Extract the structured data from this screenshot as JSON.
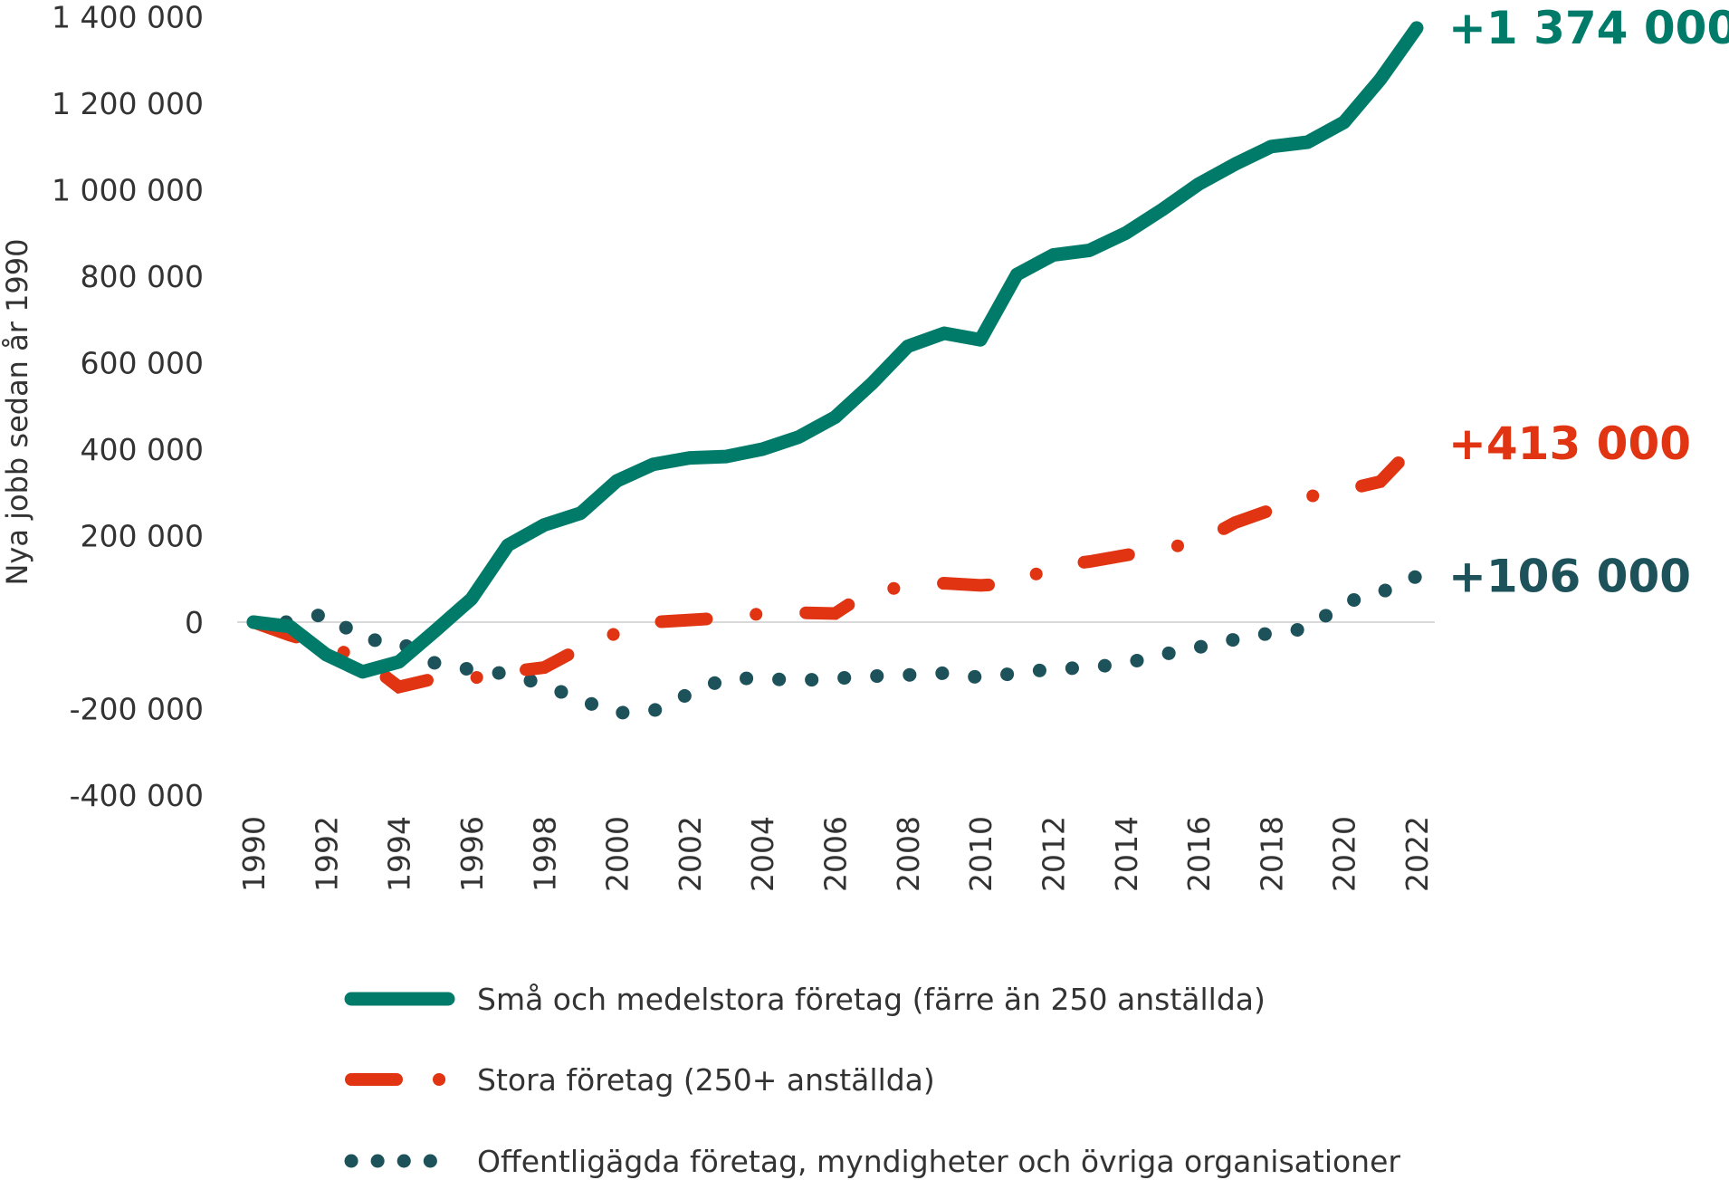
{
  "chart_data": {
    "type": "line",
    "title": "",
    "xlabel": "",
    "ylabel": "Nya jobb sedan år 1990",
    "ylim": [
      -400000,
      1400000
    ],
    "yticks": [
      -400000,
      -200000,
      0,
      200000,
      400000,
      600000,
      800000,
      1000000,
      1200000,
      1400000
    ],
    "ytick_labels": [
      "-400 000",
      "-200 000",
      "0",
      "200 000",
      "400 000",
      "600 000",
      "800 000",
      "1 000 000",
      "1 200 000",
      "1 400 000"
    ],
    "xtick_labels": [
      "1990",
      "1992",
      "1994",
      "1996",
      "1998",
      "2000",
      "2002",
      "2004",
      "2006",
      "2008",
      "2010",
      "2012",
      "2014",
      "2016",
      "2018",
      "2020",
      "2022"
    ],
    "x": [
      1990,
      1991,
      1992,
      1993,
      1994,
      1995,
      1996,
      1997,
      1998,
      1999,
      2000,
      2001,
      2002,
      2003,
      2004,
      2005,
      2006,
      2007,
      2008,
      2009,
      2010,
      2011,
      2012,
      2013,
      2014,
      2015,
      2016,
      2017,
      2018,
      2019,
      2020,
      2021,
      2022
    ],
    "legend_position": "bottom",
    "series": [
      {
        "name": "Små och medelstora företag (färre än 250 anställda)",
        "color": "#007b69",
        "style": "solid",
        "end_label": "+1 374 000",
        "values": [
          0,
          -10000,
          -75000,
          -115000,
          -92000,
          -20000,
          54000,
          178000,
          225000,
          252000,
          327000,
          365000,
          380000,
          383000,
          400000,
          428000,
          474000,
          551000,
          638000,
          668000,
          653000,
          804000,
          849000,
          860000,
          900000,
          954000,
          1013000,
          1059000,
          1100000,
          1110000,
          1156000,
          1255000,
          1374000
        ]
      },
      {
        "name": "Stora företag (250+ anställda)",
        "color": "#e03412",
        "style": "dashdot",
        "end_label": "+413 000",
        "values": [
          0,
          -30000,
          -55000,
          -85000,
          -150000,
          -130000,
          -130000,
          -115000,
          -105000,
          -60000,
          -25000,
          0,
          5000,
          10000,
          20000,
          22000,
          20000,
          75000,
          80000,
          90000,
          85000,
          90000,
          130000,
          140000,
          155000,
          170000,
          185000,
          230000,
          260000,
          290000,
          305000,
          325000,
          413000
        ]
      },
      {
        "name": "Offentligägda företag, myndigheter och övriga organisationer",
        "color": "#1d525a",
        "style": "dotted",
        "end_label": "+106 000",
        "values": [
          0,
          0,
          20000,
          -40000,
          -45000,
          -95000,
          -110000,
          -120000,
          -145000,
          -180000,
          -210000,
          -205000,
          -165000,
          -130000,
          -130000,
          -135000,
          -130000,
          -125000,
          -122000,
          -118000,
          -128000,
          -118000,
          -108000,
          -105000,
          -95000,
          -75000,
          -58000,
          -40000,
          -25000,
          -15000,
          45000,
          68000,
          106000
        ]
      }
    ]
  }
}
